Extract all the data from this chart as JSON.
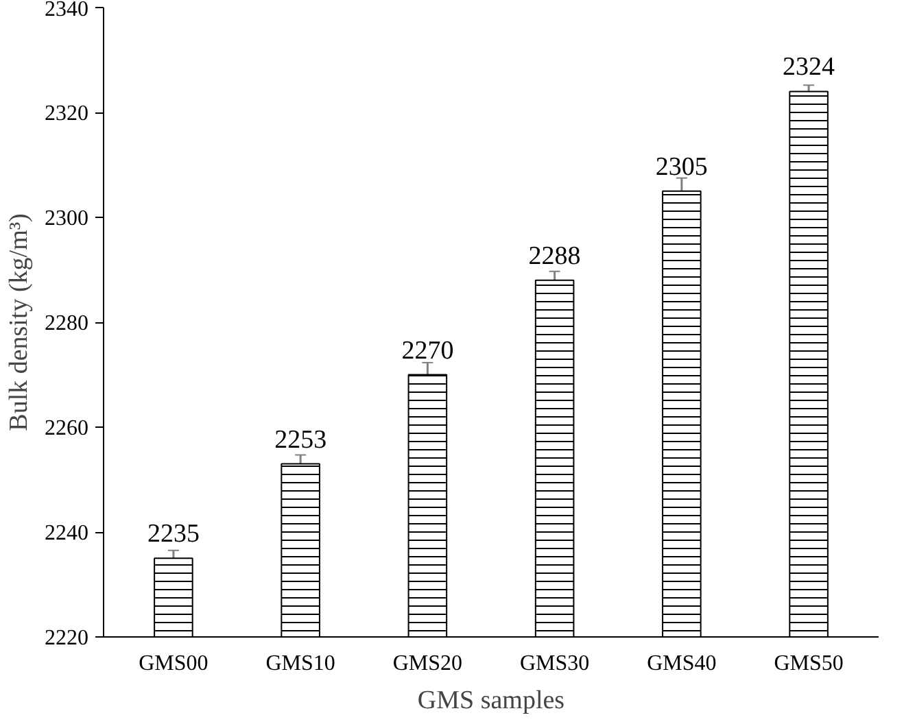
{
  "chart_data": {
    "type": "bar",
    "xlabel": "GMS samples",
    "ylabel": "Bulk density (kg/m³)",
    "categories": [
      "GMS00",
      "GMS10",
      "GMS20",
      "GMS30",
      "GMS40",
      "GMS50"
    ],
    "values": [
      2235,
      2253,
      2270,
      2288,
      2305,
      2324
    ],
    "errors": [
      1.5,
      1.7,
      2.3,
      1.7,
      2.5,
      1.2
    ],
    "color": "#000000",
    "data_labels": true,
    "grid": false,
    "ylim": [
      2220,
      2340
    ],
    "yticks": [
      2220,
      2240,
      2260,
      2280,
      2300,
      2320,
      2340
    ]
  }
}
